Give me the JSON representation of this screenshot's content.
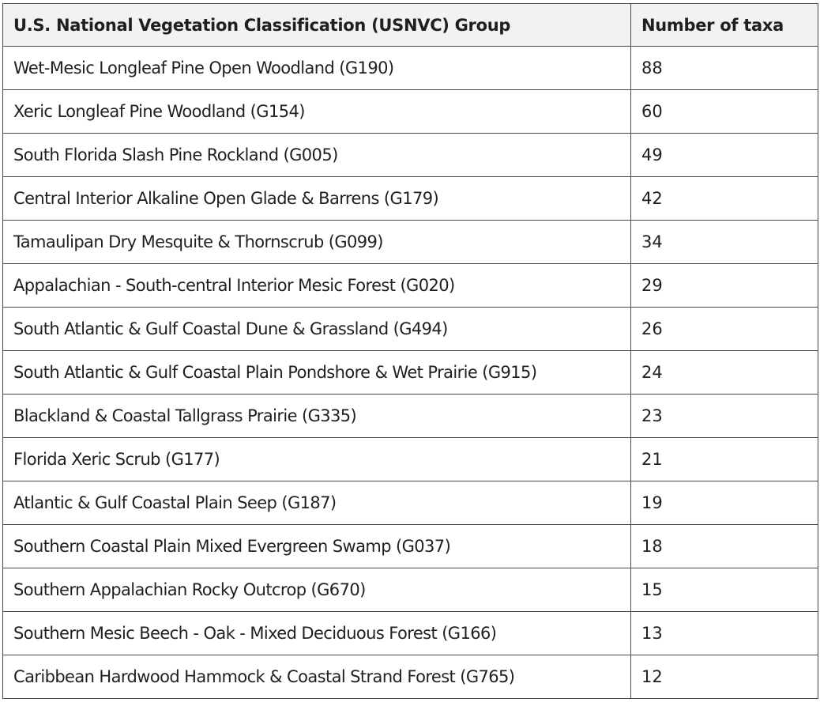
{
  "table": {
    "headers": {
      "group": "U.S. National Vegetation Classification (USNVC) Group",
      "count": "Number of taxa"
    },
    "rows": [
      {
        "group": "Wet-Mesic Longleaf Pine Open Woodland (G190)",
        "count": "88"
      },
      {
        "group": "Xeric Longleaf Pine Woodland (G154)",
        "count": "60"
      },
      {
        "group": "South Florida Slash Pine Rockland (G005)",
        "count": "49"
      },
      {
        "group": "Central Interior Alkaline Open Glade & Barrens (G179)",
        "count": "42"
      },
      {
        "group": "Tamaulipan Dry Mesquite & Thornscrub (G099)",
        "count": "34"
      },
      {
        "group": "Appalachian - South-central Interior Mesic Forest (G020)",
        "count": "29"
      },
      {
        "group": "South Atlantic & Gulf Coastal Dune & Grassland (G494)",
        "count": "26"
      },
      {
        "group": "South Atlantic & Gulf Coastal Plain Pondshore & Wet Prairie (G915)",
        "count": "24"
      },
      {
        "group": "Blackland & Coastal Tallgrass Prairie (G335)",
        "count": "23"
      },
      {
        "group": "Florida Xeric Scrub (G177)",
        "count": "21"
      },
      {
        "group": "Atlantic & Gulf Coastal Plain Seep (G187)",
        "count": "19"
      },
      {
        "group": "Southern Coastal Plain Mixed Evergreen Swamp (G037)",
        "count": "18"
      },
      {
        "group": "Southern Appalachian Rocky Outcrop (G670)",
        "count": "15"
      },
      {
        "group": "Southern Mesic Beech - Oak - Mixed Deciduous Forest (G166)",
        "count": "13"
      },
      {
        "group": "Caribbean Hardwood Hammock & Coastal Strand Forest (G765)",
        "count": "12"
      }
    ]
  }
}
